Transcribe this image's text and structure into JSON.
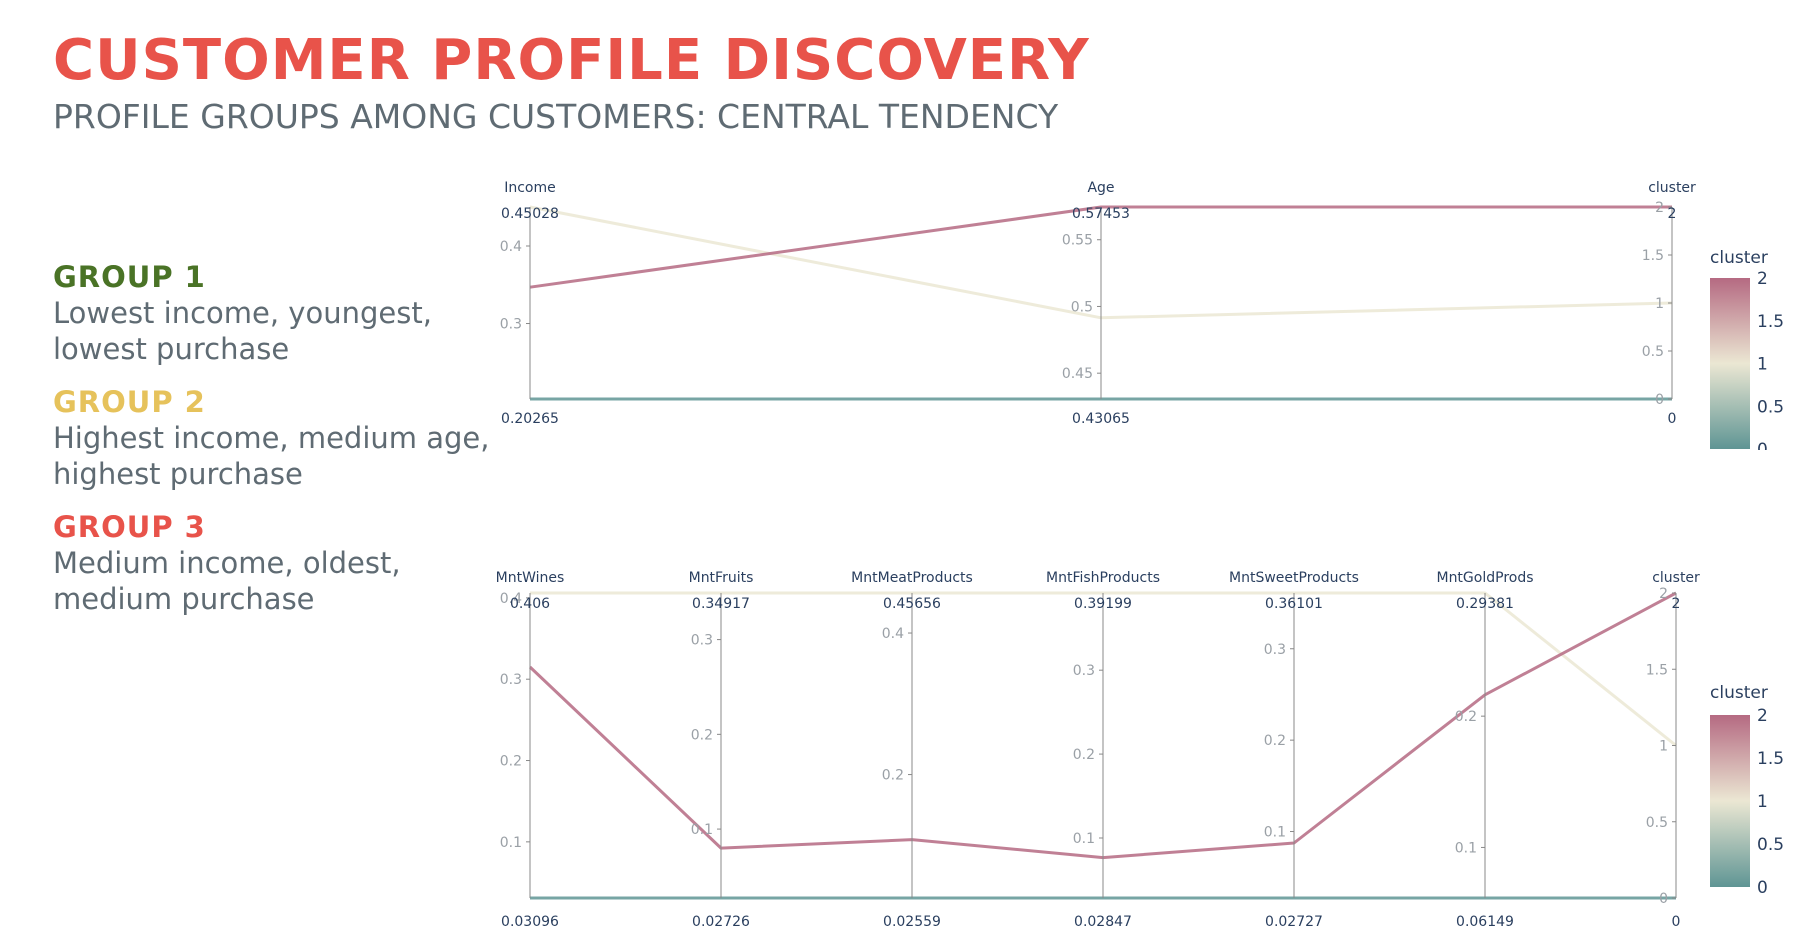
{
  "page": {
    "title": "CUSTOMER PROFILE DISCOVERY",
    "subtitle": "PROFILE GROUPS AMONG CUSTOMERS: CENTRAL TENDENCY"
  },
  "groups": [
    {
      "title": "GROUP 1",
      "color": "#4a7326",
      "lines": [
        "Lowest income, youngest,",
        "lowest purchase"
      ]
    },
    {
      "title": "GROUP 2",
      "color": "#e6c25b",
      "lines": [
        "Highest income, medium age,",
        "highest purchase"
      ]
    },
    {
      "title": "GROUP 3",
      "color": "#e8534a",
      "lines": [
        "Medium income, oldest,",
        "medium purchase"
      ]
    }
  ],
  "colors": {
    "accent": "#e8534a",
    "subtitle": "#5f6b73",
    "cluster_scale": [
      "#5f9594",
      "#ebe7d3",
      "#b56a82"
    ]
  },
  "chart_data": [
    {
      "type": "parallel_coordinates",
      "colorbar": {
        "title": "cluster",
        "range": [
          0,
          2
        ],
        "ticks": [
          "0",
          "0.5",
          "1",
          "1.5",
          "2"
        ]
      },
      "dimensions": [
        {
          "label": "Income",
          "range": [
            0.20265,
            0.45028
          ],
          "range_labels": [
            "0.20265",
            "0.45028"
          ],
          "ticks": [
            0.3,
            0.4
          ],
          "tick_labels": [
            "0.3",
            "0.4"
          ]
        },
        {
          "label": "Age",
          "range": [
            0.43065,
            0.57453
          ],
          "range_labels": [
            "0.43065",
            "0.57453"
          ],
          "ticks": [
            0.45,
            0.5,
            0.55
          ],
          "tick_labels": [
            "0.45",
            "0.5",
            "0.55"
          ]
        },
        {
          "label": "cluster",
          "range": [
            0,
            2
          ],
          "range_labels": [
            "0",
            "2"
          ],
          "ticks": [
            0,
            0.5,
            1,
            1.5,
            2
          ],
          "tick_labels": [
            "0",
            "0.5",
            "1",
            "1.5",
            "2"
          ]
        }
      ],
      "lines": [
        {
          "cluster": 0,
          "values": [
            0.20265,
            0.43065,
            0
          ]
        },
        {
          "cluster": 1,
          "values": [
            0.45028,
            0.4915,
            1
          ]
        },
        {
          "cluster": 2,
          "values": [
            0.3468,
            0.57453,
            2
          ]
        }
      ]
    },
    {
      "type": "parallel_coordinates",
      "colorbar": {
        "title": "cluster",
        "range": [
          0,
          2
        ],
        "ticks": [
          "0",
          "0.5",
          "1",
          "1.5",
          "2"
        ]
      },
      "dimensions": [
        {
          "label": "MntWines",
          "range": [
            0.03096,
            0.406
          ],
          "range_labels": [
            "0.03096",
            "0.406"
          ],
          "ticks": [
            0.1,
            0.2,
            0.3,
            0.4
          ],
          "tick_labels": [
            "0.1",
            "0.2",
            "0.3",
            "0.4"
          ]
        },
        {
          "label": "MntFruits",
          "range": [
            0.02726,
            0.34917
          ],
          "range_labels": [
            "0.02726",
            "0.34917"
          ],
          "ticks": [
            0.1,
            0.2,
            0.3
          ],
          "tick_labels": [
            "0.1",
            "0.2",
            "0.3"
          ]
        },
        {
          "label": "MntMeatProducts",
          "range": [
            0.02559,
            0.45656
          ],
          "range_labels": [
            "0.02559",
            "0.45656"
          ],
          "ticks": [
            0.2,
            0.4
          ],
          "tick_labels": [
            "0.2",
            "0.4"
          ]
        },
        {
          "label": "MntFishProducts",
          "range": [
            0.02847,
            0.39199
          ],
          "range_labels": [
            "0.02847",
            "0.39199"
          ],
          "ticks": [
            0.1,
            0.2,
            0.3
          ],
          "tick_labels": [
            "0.1",
            "0.2",
            "0.3"
          ]
        },
        {
          "label": "MntSweetProducts",
          "range": [
            0.02727,
            0.36101
          ],
          "range_labels": [
            "0.02727",
            "0.36101"
          ],
          "ticks": [
            0.1,
            0.2,
            0.3
          ],
          "tick_labels": [
            "0.1",
            "0.2",
            "0.3"
          ]
        },
        {
          "label": "MntGoldProds",
          "range": [
            0.06149,
            0.29381
          ],
          "range_labels": [
            "0.06149",
            "0.29381"
          ],
          "ticks": [
            0.1,
            0.2
          ],
          "tick_labels": [
            "0.1",
            "0.2"
          ]
        },
        {
          "label": "cluster",
          "range": [
            0,
            2
          ],
          "range_labels": [
            "0",
            "2"
          ],
          "ticks": [
            0,
            0.5,
            1,
            1.5,
            2
          ],
          "tick_labels": [
            "0",
            "0.5",
            "1",
            "1.5",
            "2"
          ]
        }
      ],
      "lines": [
        {
          "cluster": 0,
          "values": [
            0.03096,
            0.02726,
            0.02559,
            0.02847,
            0.02727,
            0.06149,
            0
          ]
        },
        {
          "cluster": 1,
          "values": [
            0.406,
            0.34917,
            0.45656,
            0.39199,
            0.36101,
            0.29381,
            1
          ]
        },
        {
          "cluster": 2,
          "values": [
            0.315,
            0.0799,
            0.1081,
            0.0766,
            0.0874,
            0.2163,
            2
          ]
        }
      ]
    }
  ]
}
